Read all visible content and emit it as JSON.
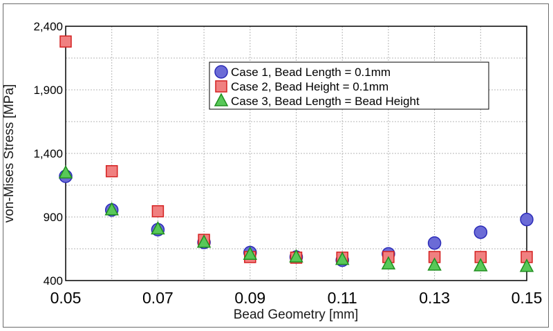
{
  "chart_data": {
    "type": "scatter",
    "xlabel": "Bead Geometry [mm]",
    "ylabel": "von-Mises Stress [MPa]",
    "xlim": [
      0.05,
      0.15
    ],
    "ylim": [
      400,
      2400
    ],
    "x_ticks": [
      "0.05",
      "0.07",
      "0.09",
      "0.11",
      "0.13",
      "0.15"
    ],
    "y_ticks": [
      "400",
      "900",
      "1,400",
      "1,900",
      "2,400"
    ],
    "grid": true,
    "legend_position": "top-right",
    "x": [
      0.05,
      0.06,
      0.07,
      0.08,
      0.09,
      0.1,
      0.11,
      0.12,
      0.13,
      0.14,
      0.15
    ],
    "series": [
      {
        "name": "Case 1, Bead Length = 0.1mm",
        "marker": "circle",
        "fill": "#6b6bd6",
        "stroke": "#2b2bb8",
        "values": [
          1220,
          955,
          800,
          700,
          620,
          585,
          560,
          610,
          695,
          780,
          880
        ]
      },
      {
        "name": "Case 2, Bead Height = 0.1mm",
        "marker": "square",
        "fill": "#f08080",
        "stroke": "#d42020",
        "values": [
          2280,
          1260,
          945,
          720,
          585,
          580,
          580,
          585,
          585,
          585,
          585
        ]
      },
      {
        "name": "Case 3, Bead Length = Bead Height",
        "marker": "triangle",
        "fill": "#58c858",
        "stroke": "#1f8f1f",
        "values": [
          1245,
          955,
          805,
          700,
          605,
          585,
          565,
          530,
          520,
          515,
          510
        ]
      }
    ]
  }
}
